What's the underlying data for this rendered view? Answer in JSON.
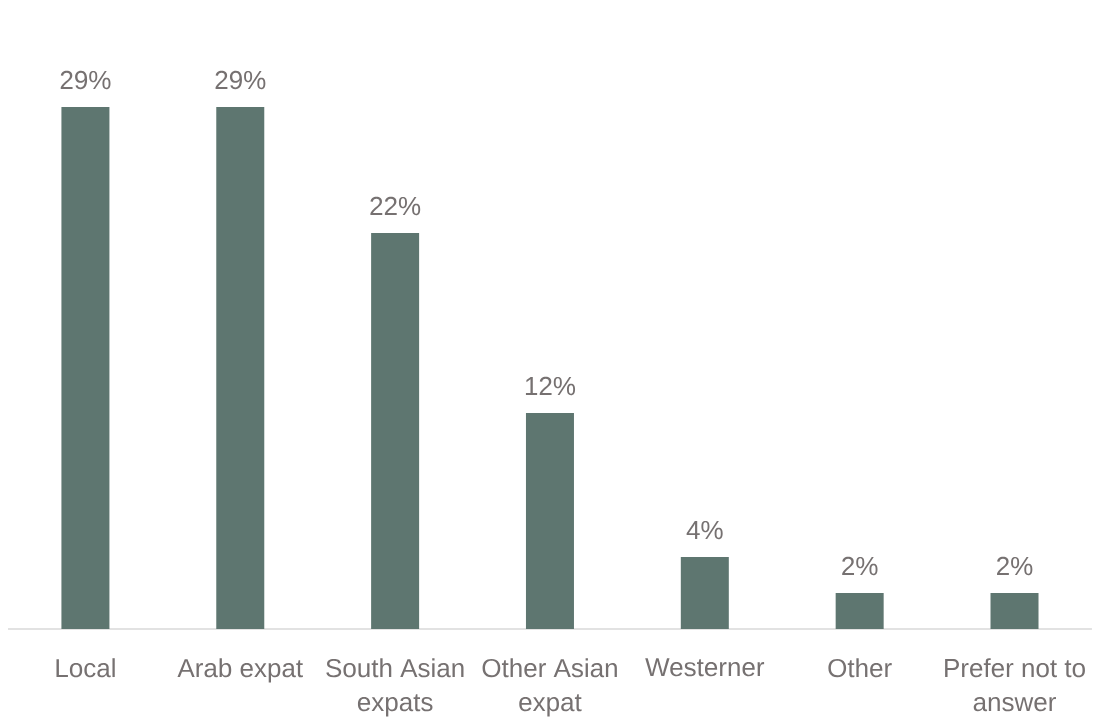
{
  "chart_data": {
    "type": "bar",
    "categories": [
      "Local",
      "Arab expat",
      "South Asian expats",
      "Other Asian expat",
      "Westerner",
      "Other",
      "Prefer not to answer"
    ],
    "values": [
      29,
      29,
      22,
      12,
      4,
      2,
      2
    ],
    "value_labels": [
      "29%",
      "29%",
      "22%",
      "12%",
      "4%",
      "2%",
      "2%"
    ],
    "color": "#5e7670"
  }
}
